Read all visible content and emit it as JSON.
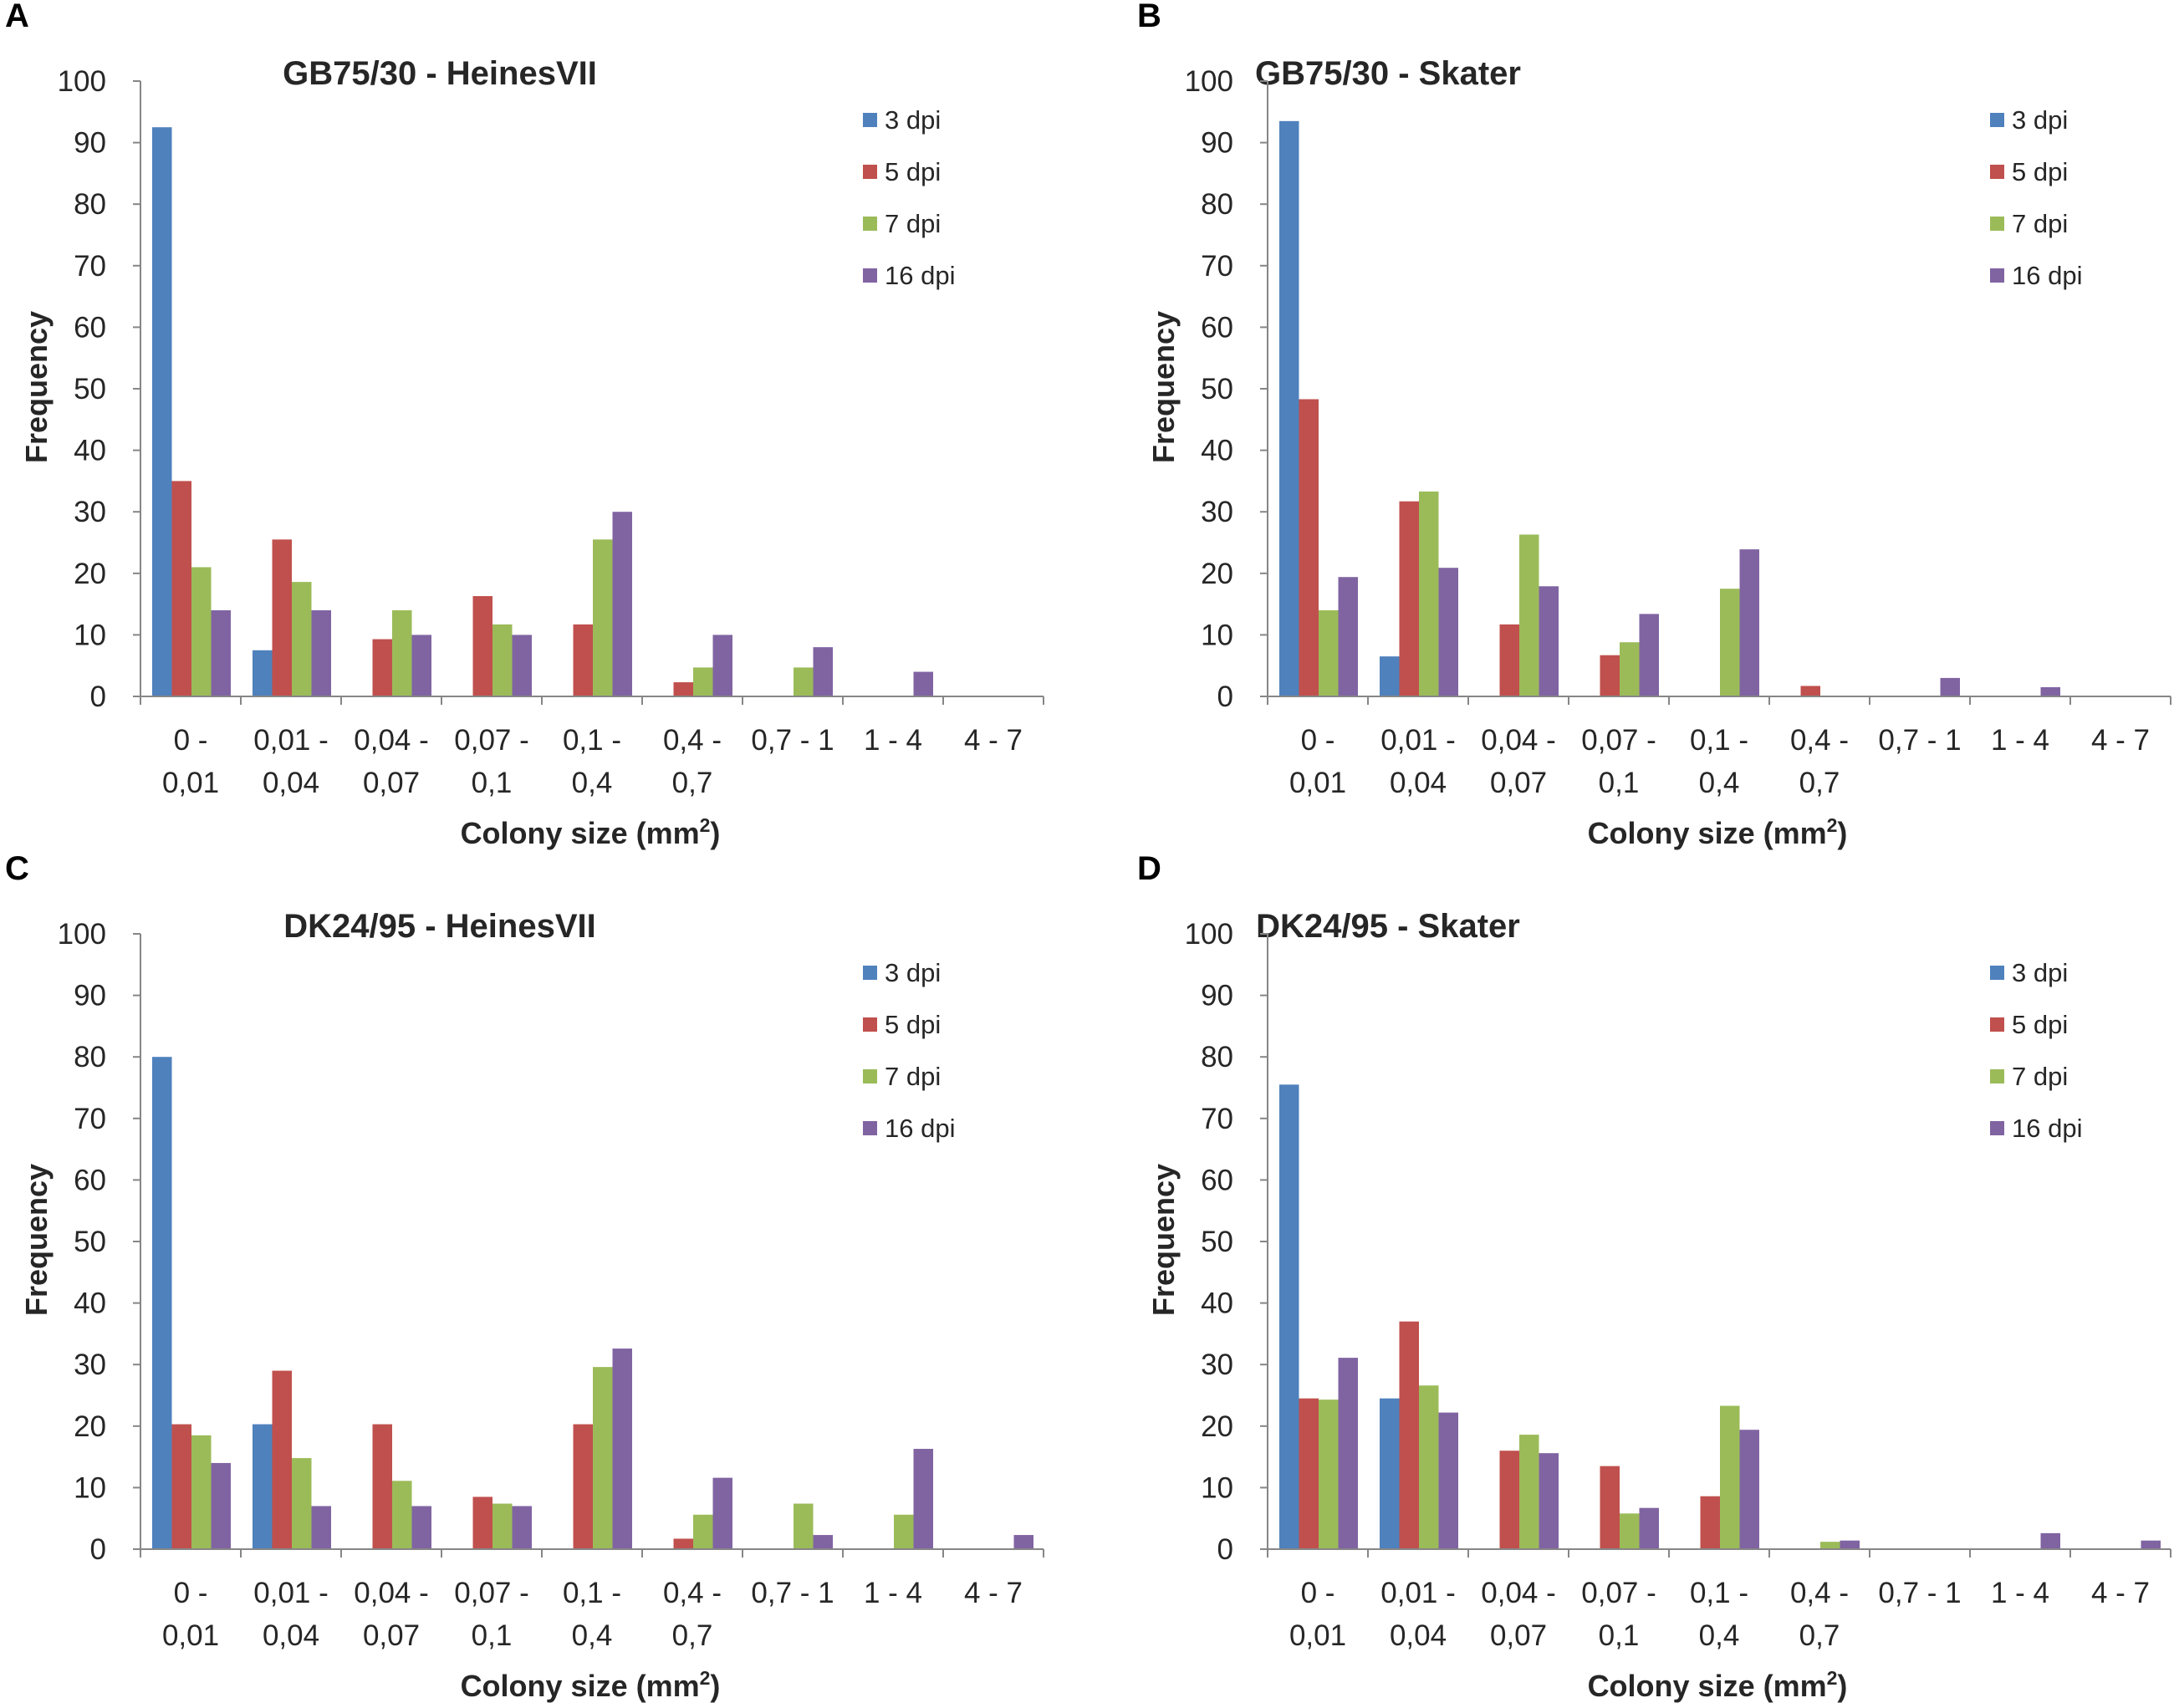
{
  "figure": {
    "y_ticks": [
      "0",
      "10",
      "20",
      "30",
      "40",
      "50",
      "60",
      "70",
      "80",
      "90",
      "100"
    ],
    "categories": [
      {
        "line1": "0 -",
        "line2": "0,01"
      },
      {
        "line1": "0,01 -",
        "line2": "0,04"
      },
      {
        "line1": "0,04 -",
        "line2": "0,07"
      },
      {
        "line1": "0,07 -",
        "line2": "0,1"
      },
      {
        "line1": "0,1 -",
        "line2": "0,4"
      },
      {
        "line1": "0,4 -",
        "line2": "0,7"
      },
      {
        "line1": "0,7  - 1",
        "line2": ""
      },
      {
        "line1": "1 - 4",
        "line2": ""
      },
      {
        "line1": "4 - 7",
        "line2": ""
      }
    ],
    "series_colors": {
      "3 dpi": "#4F81BD",
      "5 dpi": "#C0504D",
      "7 dpi": "#9BBB59",
      "16 dpi": "#8064A2"
    }
  },
  "chart_data": [
    {
      "panel": "A",
      "type": "bar",
      "title": "GB75/30 - HeinesVII",
      "xlabel": "Colony size (mm",
      "xlabel_sup": "2",
      "xlabel_end": ")",
      "ylabel": "Frequency",
      "ylim": [
        0,
        100
      ],
      "categories": [
        "0 - 0,01",
        "0,01 - 0,04",
        "0,04 - 0,07",
        "0,07 - 0,1",
        "0,1 - 0,4",
        "0,4 - 0,7",
        "0,7 - 1",
        "1 - 4",
        "4 - 7"
      ],
      "series": [
        {
          "name": "3 dpi",
          "values": [
            92.5,
            7.5,
            0,
            0,
            0,
            0,
            0,
            0,
            0
          ]
        },
        {
          "name": "5 dpi",
          "values": [
            35,
            25.5,
            9.3,
            16.3,
            11.7,
            2.3,
            0,
            0,
            0
          ]
        },
        {
          "name": "7 dpi",
          "values": [
            21,
            18.6,
            14,
            11.7,
            25.5,
            4.7,
            4.7,
            0,
            0
          ]
        },
        {
          "name": "16 dpi",
          "values": [
            14,
            14,
            10,
            10,
            30,
            10,
            8,
            4,
            0
          ]
        }
      ]
    },
    {
      "panel": "B",
      "type": "bar",
      "title": "GB75/30 - Skater",
      "xlabel": "Colony size (mm",
      "xlabel_sup": "2",
      "xlabel_end": ")",
      "ylabel": "Frequency",
      "ylim": [
        0,
        100
      ],
      "categories": [
        "0 - 0,01",
        "0,01 - 0,04",
        "0,04 - 0,07",
        "0,07 - 0,1",
        "0,1 - 0,4",
        "0,4 - 0,7",
        "0,7 - 1",
        "1 - 4",
        "4 - 7"
      ],
      "series": [
        {
          "name": "3 dpi",
          "values": [
            93.5,
            6.5,
            0,
            0,
            0,
            0,
            0,
            0,
            0
          ]
        },
        {
          "name": "5 dpi",
          "values": [
            48.3,
            31.7,
            11.7,
            6.7,
            0,
            1.7,
            0,
            0,
            0
          ]
        },
        {
          "name": "7 dpi",
          "values": [
            14,
            33.3,
            26.3,
            8.8,
            17.5,
            0,
            0,
            0,
            0
          ]
        },
        {
          "name": "16 dpi",
          "values": [
            19.4,
            20.9,
            17.9,
            13.4,
            23.9,
            0,
            3,
            1.5,
            0
          ]
        }
      ]
    },
    {
      "panel": "C",
      "type": "bar",
      "title": "DK24/95 - HeinesVII",
      "xlabel": "Colony size (mm",
      "xlabel_sup": "2",
      "xlabel_end": ")",
      "ylabel": "Frequency",
      "ylim": [
        0,
        100
      ],
      "categories": [
        "0 - 0,01",
        "0,01 - 0,04",
        "0,04 - 0,07",
        "0,07 - 0,1",
        "0,1 - 0,4",
        "0,4 - 0,7",
        "0,7 - 1",
        "1 - 4",
        "4 - 7"
      ],
      "series": [
        {
          "name": "3 dpi",
          "values": [
            80,
            20.3,
            0,
            0,
            0,
            0,
            0,
            0,
            0
          ]
        },
        {
          "name": "5 dpi",
          "values": [
            20.3,
            29,
            20.3,
            8.5,
            20.3,
            1.7,
            0,
            0,
            0
          ]
        },
        {
          "name": "7 dpi",
          "values": [
            18.5,
            14.8,
            11.1,
            7.4,
            29.6,
            5.6,
            7.4,
            5.6,
            0
          ]
        },
        {
          "name": "16 dpi",
          "values": [
            14,
            7,
            7,
            7,
            32.6,
            11.6,
            2.3,
            16.3,
            2.3
          ]
        }
      ]
    },
    {
      "panel": "D",
      "type": "bar",
      "title": "DK24/95 - Skater",
      "xlabel": "Colony size (mm",
      "xlabel_sup": "2",
      "xlabel_end": ")",
      "ylabel": "Frequency",
      "ylim": [
        0,
        100
      ],
      "categories": [
        "0 - 0,01",
        "0,01 - 0,04",
        "0,04 - 0,07",
        "0,07 - 0,1",
        "0,1 - 0,4",
        "0,4 - 0,7",
        "0,7 - 1",
        "1 - 4",
        "4 - 7"
      ],
      "series": [
        {
          "name": "3 dpi",
          "values": [
            75.5,
            24.5,
            0,
            0,
            0,
            0,
            0,
            0,
            0
          ]
        },
        {
          "name": "5 dpi",
          "values": [
            24.5,
            37,
            16,
            13.5,
            8.6,
            0,
            0,
            0,
            0
          ]
        },
        {
          "name": "7 dpi",
          "values": [
            24.3,
            26.6,
            18.6,
            5.8,
            23.3,
            1.2,
            0,
            0,
            0
          ]
        },
        {
          "name": "16 dpi",
          "values": [
            31.1,
            22.2,
            15.6,
            6.7,
            19.4,
            1.4,
            0,
            2.6,
            1.4
          ]
        }
      ]
    }
  ]
}
